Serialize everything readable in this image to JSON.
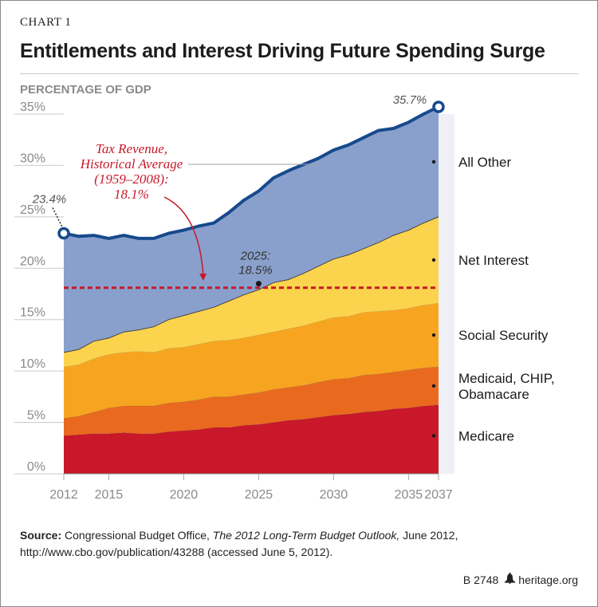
{
  "header": {
    "chart_tag": "CHART 1",
    "title": "Entitlements and Interest Driving Future Spending Surge"
  },
  "source": {
    "label": "Source:",
    "pre": " Congressional Budget Office, ",
    "publication": "The 2012 Long-Term Budget Outlook,",
    "post": " June 2012, http://www.cbo.gov/publication/43288 (accessed June 5, 2012)."
  },
  "footer": {
    "code": "B 2748",
    "site": "heritage.org",
    "icon": "liberty-bell-icon"
  },
  "chart_data": {
    "type": "area",
    "stacked": true,
    "ylabel": "PERCENTAGE OF GDP",
    "ylim": [
      0,
      35
    ],
    "xlim": [
      2012,
      2037
    ],
    "yticks": [
      "0%",
      "5%",
      "10%",
      "15%",
      "20%",
      "25%",
      "30%",
      "35%"
    ],
    "xticks": [
      2012,
      2015,
      2020,
      2025,
      2030,
      2035,
      2037
    ],
    "x": [
      2012,
      2013,
      2014,
      2015,
      2016,
      2017,
      2018,
      2019,
      2020,
      2021,
      2022,
      2023,
      2024,
      2025,
      2026,
      2027,
      2028,
      2029,
      2030,
      2031,
      2032,
      2033,
      2034,
      2035,
      2036,
      2037
    ],
    "series": [
      {
        "name": "Medicare",
        "color": "#c8182a",
        "values": [
          3.7,
          3.8,
          3.9,
          3.9,
          4.0,
          3.9,
          3.9,
          4.1,
          4.2,
          4.3,
          4.5,
          4.5,
          4.7,
          4.8,
          5.0,
          5.2,
          5.3,
          5.5,
          5.7,
          5.8,
          6.0,
          6.1,
          6.3,
          6.4,
          6.6,
          6.7
        ]
      },
      {
        "name": "Medicaid, CHIP, Obamacare",
        "color": "#e96a1f",
        "values": [
          1.7,
          1.8,
          2.1,
          2.5,
          2.6,
          2.7,
          2.7,
          2.8,
          2.8,
          2.9,
          3.0,
          3.0,
          3.0,
          3.1,
          3.2,
          3.2,
          3.3,
          3.4,
          3.5,
          3.5,
          3.6,
          3.6,
          3.6,
          3.7,
          3.7,
          3.7
        ]
      },
      {
        "name": "Social Security",
        "color": "#f7a521",
        "values": [
          5.0,
          5.0,
          5.2,
          5.2,
          5.2,
          5.3,
          5.2,
          5.3,
          5.3,
          5.4,
          5.4,
          5.5,
          5.5,
          5.6,
          5.6,
          5.7,
          5.8,
          5.9,
          6.0,
          6.0,
          6.1,
          6.1,
          6.0,
          6.0,
          6.1,
          6.2
        ]
      },
      {
        "name": "Net Interest",
        "color": "#fcd34d",
        "values": [
          1.4,
          1.5,
          1.7,
          1.6,
          2.0,
          2.1,
          2.5,
          2.8,
          3.1,
          3.2,
          3.3,
          3.8,
          4.2,
          4.4,
          4.8,
          4.8,
          5.1,
          5.4,
          5.7,
          6.0,
          6.2,
          6.7,
          7.3,
          7.6,
          8.0,
          8.4
        ]
      },
      {
        "name": "All Other",
        "color": "#8aa0cc",
        "values": [
          11.6,
          11.0,
          10.3,
          9.7,
          9.4,
          8.9,
          8.6,
          8.4,
          8.3,
          8.3,
          8.2,
          8.6,
          9.2,
          9.6,
          10.2,
          10.6,
          10.6,
          10.5,
          10.6,
          10.7,
          10.8,
          10.9,
          10.4,
          10.5,
          10.6,
          10.7
        ]
      }
    ],
    "total_line_color": "#174a8c",
    "reference_line": {
      "value": 18.1,
      "color": "#c8182a",
      "label": [
        "Tax Revenue,",
        "Historical Average",
        "(1959–2008):",
        "18.1%"
      ]
    },
    "annotations": {
      "start_total": "23.4%",
      "end_total": "35.7%",
      "crossover": [
        "2025:",
        "18.5%"
      ],
      "crossover_x": 2025,
      "crossover_y": 18.5
    }
  }
}
